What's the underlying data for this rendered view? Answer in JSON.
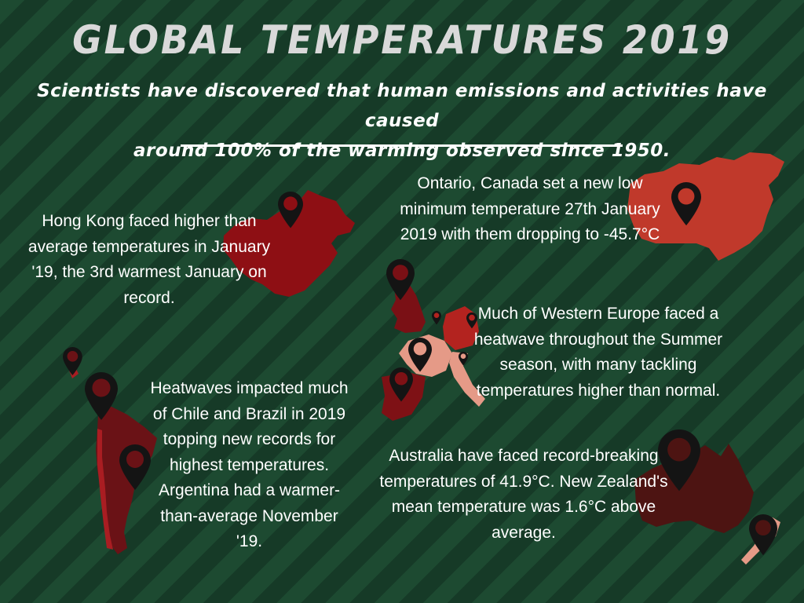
{
  "header": {
    "title": "GLOBAL TEMPERATURES 2019",
    "subtitle_line1": "Scientists have discovered that human emissions and activities have caused",
    "subtitle_line2": "around 100% of the warming observed since 1950."
  },
  "facts": {
    "hong_kong": "Hong Kong faced higher than average temperatures in January '19, the 3rd warmest January on record.",
    "canada": "Ontario, Canada set a new low minimum temperature 27th January 2019 with them dropping to -45.7°C",
    "europe": "Much of Western Europe faced a heatwave throughout the Summer season, with many tackling temperatures higher than normal.",
    "south_america": "Heatwaves impacted much of Chile and Brazil in 2019 topping new records for highest temperatures. Argentina had a warmer-than-average November '19.",
    "australia": "Australia have faced record-breaking temperatures of 41.9°C. New Zealand's mean temperature was 1.6°C above average."
  },
  "colors": {
    "china": "#8e0f14",
    "canada": "#c0392b",
    "uk": "#7a1015",
    "france": "#a91d22",
    "spain": "#7e1115",
    "germany": "#b3231f",
    "italy": "#e59a87",
    "south_america": "#6a1216",
    "australia": "#4d1412",
    "pin": "#141414"
  },
  "icons": [
    "map-pin-icon"
  ]
}
